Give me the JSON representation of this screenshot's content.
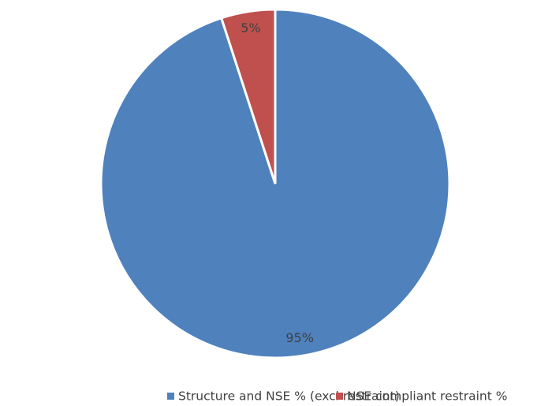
{
  "chart_data": {
    "type": "pie",
    "categories": [
      "Structure and NSE % (excl restraint)",
      "NSE compliant restraint %"
    ],
    "values": [
      95,
      5
    ],
    "value_labels": [
      "95%",
      "5%"
    ],
    "colors": [
      "#4f81bd",
      "#c0504d"
    ],
    "legend": "bottom"
  }
}
